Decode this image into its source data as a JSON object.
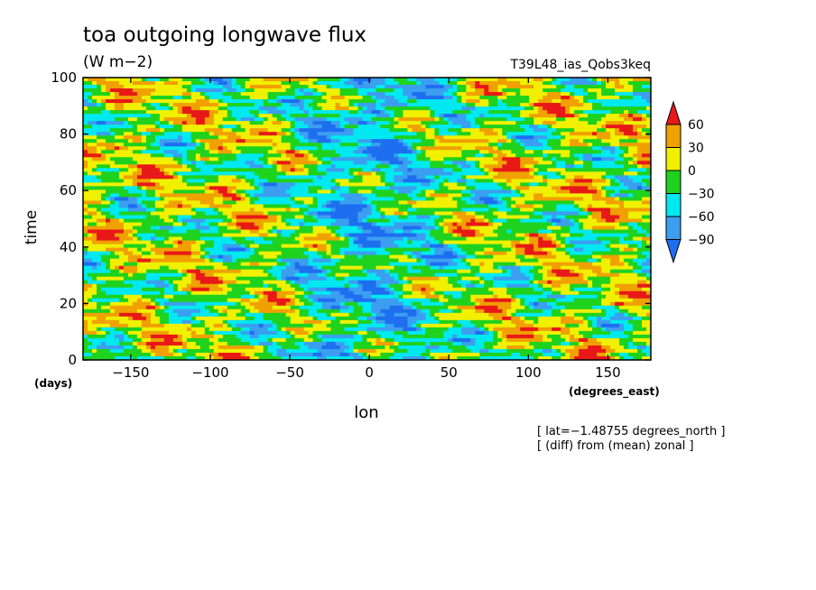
{
  "chart_data": {
    "type": "heatmap",
    "title": "toa outgoing longwave flux",
    "units": "(W m−2)",
    "run_label": "T39L48_ias_Qobs3keq",
    "xlabel": "lon",
    "xunits": "(degrees_east)",
    "ylabel": "time",
    "yunits": "(days)",
    "xlim": [
      -180,
      177
    ],
    "ylim": [
      0,
      100
    ],
    "xticks": [
      -150,
      -100,
      -50,
      0,
      50,
      100,
      150
    ],
    "yticks": [
      0,
      20,
      40,
      60,
      80,
      100
    ],
    "xtick_labels": [
      "−150",
      "−100",
      "−50",
      "0",
      "50",
      "100",
      "150"
    ],
    "ytick_labels": [
      "0",
      "20",
      "40",
      "60",
      "80",
      "100"
    ],
    "colorbar": {
      "levels": [
        -90,
        -60,
        -30,
        0,
        30,
        60
      ],
      "labels": [
        "−90",
        "−60",
        "−30",
        "0",
        "30",
        "60"
      ],
      "colors": [
        "#1e6ef0",
        "#3c9ef0",
        "#00e8f0",
        "#1ed21e",
        "#f0f000",
        "#f0a000",
        "#e81818"
      ]
    },
    "notes": [
      "[ lat=−1.48755 degrees_north ]",
      "[ (diff) from (mean) zonal ]"
    ]
  }
}
